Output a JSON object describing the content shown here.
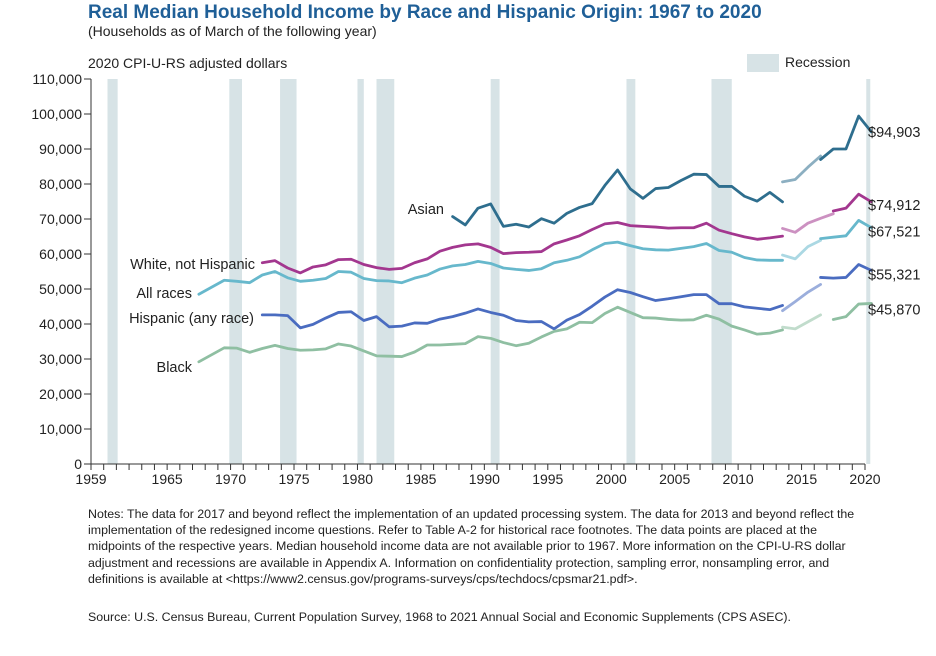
{
  "header": {
    "title": "Real Median Household Income by Race and Hispanic Origin: 1967 to 2020",
    "subtitle": "(Households as of March of the following year)",
    "unit_label": "2020 CPI-U-RS adjusted dollars"
  },
  "legend": {
    "recession_label": "Recession",
    "placement": "top-right"
  },
  "footer": {
    "notes": "Notes: The data for 2017 and beyond reflect the implementation of an updated processing system. The data for 2013 and beyond reflect the implementation of the redesigned income questions. Refer to Table A-2 for historical race footnotes. The data points are placed at the midpoints of the respective years. Median household income data are not available prior to 1967. More information on the CPI-U-RS dollar adjustment and recessions are available in Appendix A. Information on confidentiality protection, sampling error, nonsampling error, and definitions is available at <https://www2.census.gov/programs-surveys/cps/techdocs/cpsmar21.pdf>.",
    "source": "Source: U.S. Census Bureau, Current Population Survey, 1968 to 2021 Annual Social and Economic Supplements (CPS ASEC)."
  },
  "chart_data": {
    "type": "line",
    "title": "Real Median Household Income by Race and Hispanic Origin: 1967 to 2020",
    "xlabel": "",
    "ylabel": "2020 CPI-U-RS adjusted dollars",
    "xlim": [
      1959,
      2020
    ],
    "ylim": [
      0,
      110000
    ],
    "grid": false,
    "x_ticks": [
      "1959",
      "1965",
      "1970",
      "1975",
      "1980",
      "1985",
      "1990",
      "1995",
      "2000",
      "2005",
      "2010",
      "2015",
      "2020"
    ],
    "y_ticks": [
      "0",
      "10,000",
      "20,000",
      "30,000",
      "40,000",
      "50,000",
      "60,000",
      "70,000",
      "80,000",
      "90,000",
      "100,000",
      "110,000"
    ],
    "recessions": [
      [
        1960.3,
        1961.1
      ],
      [
        1969.9,
        1970.9
      ],
      [
        1973.9,
        1975.2
      ],
      [
        1980.0,
        1980.5
      ],
      [
        1981.5,
        1982.9
      ],
      [
        1990.5,
        1991.2
      ],
      [
        2001.2,
        2001.9
      ],
      [
        2007.9,
        2009.5
      ],
      [
        2020.1,
        2020.4
      ]
    ],
    "series": [
      {
        "name": "Asian",
        "color": "#2e6e8e",
        "end_label": "$94,903",
        "segments": [
          {
            "x": [
              1987,
              1988,
              1989,
              1990,
              1991,
              1992,
              1993,
              1994,
              1995,
              1996,
              1997,
              1998,
              1999,
              2000,
              2001,
              2002,
              2003,
              2004,
              2005,
              2006,
              2007,
              2008,
              2009,
              2010,
              2011,
              2012,
              2013
            ],
            "y": [
              70700,
              68300,
              73100,
              74300,
              67900,
              68500,
              67700,
              70100,
              68800,
              71600,
              73300,
              74400,
              79600,
              84000,
              78600,
              75900,
              78700,
              79000,
              81000,
              82800,
              82700,
              79300,
              79300,
              76500,
              75100,
              77600,
              74900
            ]
          },
          {
            "x": [
              2013,
              2014,
              2015,
              2016
            ],
            "y": [
              80600,
              81300,
              84800,
              88000
            ],
            "style": "light"
          },
          {
            "x": [
              2016,
              2017,
              2018,
              2019,
              2020
            ],
            "y": [
              87000,
              90000,
              90000,
              99400,
              94903
            ]
          }
        ]
      },
      {
        "name": "White, not Hispanic",
        "color": "#a3378f",
        "end_label": "$74,912",
        "segments": [
          {
            "x": [
              1972,
              1973,
              1974,
              1975,
              1976,
              1977,
              1978,
              1979,
              1980,
              1981,
              1982,
              1983,
              1984,
              1985,
              1986,
              1987,
              1988,
              1989,
              1990,
              1991,
              1992,
              1993,
              1994,
              1995,
              1996,
              1997,
              1998,
              1999,
              2000,
              2001,
              2002,
              2003,
              2004,
              2005,
              2006,
              2007,
              2008,
              2009,
              2010,
              2011,
              2012,
              2013
            ],
            "y": [
              57500,
              58100,
              56000,
              54600,
              56300,
              56900,
              58400,
              58500,
              57000,
              56100,
              55600,
              55900,
              57500,
              58600,
              60800,
              61900,
              62600,
              62900,
              61900,
              60100,
              60400,
              60500,
              60700,
              62900,
              64000,
              65200,
              67000,
              68600,
              69000,
              68100,
              67900,
              67700,
              67400,
              67500,
              67500,
              68800,
              66800,
              65800,
              64900,
              64200,
              64600,
              65100
            ]
          },
          {
            "x": [
              2013,
              2014,
              2015,
              2016,
              2017
            ],
            "y": [
              67300,
              66200,
              68800,
              70200,
              71500
            ],
            "style": "light"
          },
          {
            "x": [
              2017,
              2018,
              2019,
              2020
            ],
            "y": [
              72300,
              73100,
              77100,
              74912
            ]
          }
        ]
      },
      {
        "name": "All races",
        "color": "#67b8cc",
        "end_label": "$67,521",
        "segments": [
          {
            "x": [
              1967,
              1968,
              1969,
              1970,
              1971,
              1972,
              1973,
              1974,
              1975,
              1976,
              1977,
              1978,
              1979,
              1980,
              1981,
              1982,
              1983,
              1984,
              1985,
              1986,
              1987,
              1988,
              1989,
              1990,
              1991,
              1992,
              1993,
              1994,
              1995,
              1996,
              1997,
              1998,
              1999,
              2000,
              2001,
              2002,
              2003,
              2004,
              2005,
              2006,
              2007,
              2008,
              2009,
              2010,
              2011,
              2012,
              2013
            ],
            "y": [
              48500,
              50500,
              52500,
              52200,
              51800,
              54000,
              55000,
              53200,
              52200,
              52500,
              53000,
              55000,
              54800,
              53000,
              52400,
              52300,
              51800,
              53100,
              54000,
              55700,
              56600,
              57000,
              57900,
              57300,
              56000,
              55600,
              55300,
              55800,
              57500,
              58200,
              59200,
              61200,
              63000,
              63400,
              62400,
              61500,
              61200,
              61100,
              61600,
              62100,
              63000,
              61000,
              60500,
              59000,
              58300,
              58200,
              58200
            ]
          },
          {
            "x": [
              2013,
              2014,
              2015,
              2016
            ],
            "y": [
              59700,
              58600,
              62100,
              63900
            ],
            "style": "light"
          },
          {
            "x": [
              2016,
              2017,
              2018,
              2019,
              2020
            ],
            "y": [
              64400,
              64800,
              65200,
              69600,
              67521
            ]
          }
        ]
      },
      {
        "name": "Hispanic (any race)",
        "color": "#4a6cc0",
        "end_label": "$55,321",
        "segments": [
          {
            "x": [
              1972,
              1973,
              1974,
              1975,
              1976,
              1977,
              1978,
              1979,
              1980,
              1981,
              1982,
              1983,
              1984,
              1985,
              1986,
              1987,
              1988,
              1989,
              1990,
              1991,
              1992,
              1993,
              1994,
              1995,
              1996,
              1997,
              1998,
              1999,
              2000,
              2001,
              2002,
              2003,
              2004,
              2005,
              2006,
              2007,
              2008,
              2009,
              2010,
              2011,
              2012,
              2013
            ],
            "y": [
              42600,
              42600,
              42400,
              38900,
              39900,
              41700,
              43300,
              43500,
              41000,
              42100,
              39200,
              39400,
              40300,
              40200,
              41400,
              42100,
              43100,
              44300,
              43300,
              42500,
              41000,
              40600,
              40700,
              38600,
              41100,
              42700,
              45100,
              47700,
              49800,
              49000,
              47800,
              46700,
              47200,
              47800,
              48400,
              48400,
              45800,
              45800,
              44900,
              44500,
              44100,
              45300
            ]
          },
          {
            "x": [
              2013,
              2014,
              2015,
              2016
            ],
            "y": [
              43800,
              46400,
              49100,
              51300
            ],
            "style": "light"
          },
          {
            "x": [
              2016,
              2017,
              2018,
              2019,
              2020
            ],
            "y": [
              53300,
              53100,
              53300,
              57000,
              55321
            ]
          }
        ]
      },
      {
        "name": "Black",
        "color": "#8fbfa2",
        "end_label": "$45,870",
        "segments": [
          {
            "x": [
              1967,
              1968,
              1969,
              1970,
              1971,
              1972,
              1973,
              1974,
              1975,
              1976,
              1977,
              1978,
              1979,
              1980,
              1981,
              1982,
              1983,
              1984,
              1985,
              1986,
              1987,
              1988,
              1989,
              1990,
              1991,
              1992,
              1993,
              1994,
              1995,
              1996,
              1997,
              1998,
              1999,
              2000,
              2001,
              2002,
              2003,
              2004,
              2005,
              2006,
              2007,
              2008,
              2009,
              2010,
              2011,
              2012,
              2013
            ],
            "y": [
              29200,
              31200,
              33200,
              33100,
              31900,
              33000,
              33900,
              33000,
              32500,
              32600,
              32900,
              34300,
              33700,
              32300,
              30900,
              30800,
              30700,
              32000,
              34000,
              34000,
              34200,
              34400,
              36400,
              35900,
              34700,
              33800,
              34500,
              36300,
              37900,
              38600,
              40500,
              40400,
              43000,
              44800,
              43300,
              41800,
              41700,
              41300,
              41100,
              41200,
              42500,
              41400,
              39400,
              38300,
              37100,
              37400,
              38300
            ]
          },
          {
            "x": [
              2013,
              2014,
              2015,
              2016
            ],
            "y": [
              39100,
              38600,
              40600,
              42600
            ],
            "style": "light"
          },
          {
            "x": [
              2017,
              2018,
              2019,
              2020
            ],
            "y": [
              41300,
              42100,
              45700,
              45870
            ]
          }
        ]
      }
    ],
    "annotations": [
      {
        "text": "Asian",
        "series": "Asian"
      },
      {
        "text": "White, not Hispanic",
        "series": "White, not Hispanic"
      },
      {
        "text": "All races",
        "series": "All races"
      },
      {
        "text": "Hispanic (any race)",
        "series": "Hispanic (any race)"
      },
      {
        "text": "Black",
        "series": "Black"
      }
    ]
  }
}
